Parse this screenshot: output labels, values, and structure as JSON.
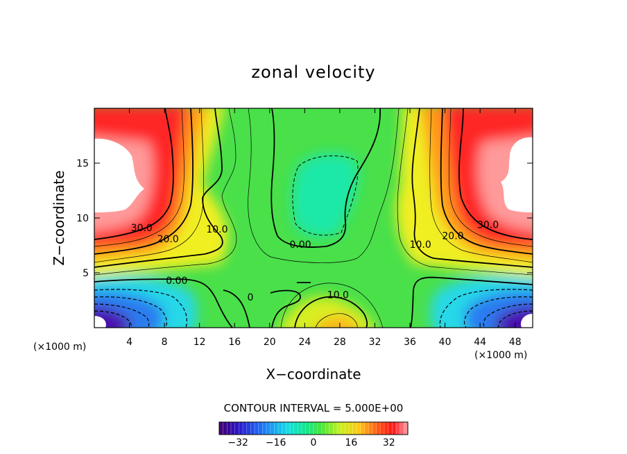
{
  "chart_data": {
    "type": "contour",
    "title": "zonal velocity",
    "xlabel": "X−coordinate",
    "ylabel": "Z−coordinate",
    "x_unit_left": "(×1000 m)",
    "x_unit_right": "(×1000 m)",
    "xlim": [
      0,
      50
    ],
    "ylim": [
      0,
      20
    ],
    "x_ticks": [
      4,
      8,
      12,
      16,
      20,
      24,
      28,
      32,
      36,
      40,
      44,
      48
    ],
    "y_ticks": [
      5,
      10,
      15
    ],
    "contour_interval_text": "CONTOUR INTERVAL = 5.000E+00",
    "contour_interval": 5,
    "contour_labels": [
      {
        "text": "30.0",
        "x": 5.4,
        "y": 9.1
      },
      {
        "text": "20.0",
        "x": 8.4,
        "y": 8.1
      },
      {
        "text": "10.0",
        "x": 14.0,
        "y": 9.0
      },
      {
        "text": "0.00",
        "x": 9.4,
        "y": 4.3
      },
      {
        "text": "0.00",
        "x": 23.5,
        "y": 7.6
      },
      {
        "text": "0",
        "x": 17.8,
        "y": 2.8
      },
      {
        "text": "10.0",
        "x": 27.8,
        "y": 3.0
      },
      {
        "text": "10.0",
        "x": 37.2,
        "y": 7.6
      },
      {
        "text": "20.0",
        "x": 40.9,
        "y": 8.4
      },
      {
        "text": "30.0",
        "x": 44.9,
        "y": 9.4
      }
    ],
    "colorbar": {
      "min": -40,
      "max": 40,
      "ticks": [
        -32,
        -16,
        0,
        16,
        32
      ],
      "tick_labels": [
        "−32",
        "−16",
        "0",
        "16",
        "32"
      ]
    }
  }
}
